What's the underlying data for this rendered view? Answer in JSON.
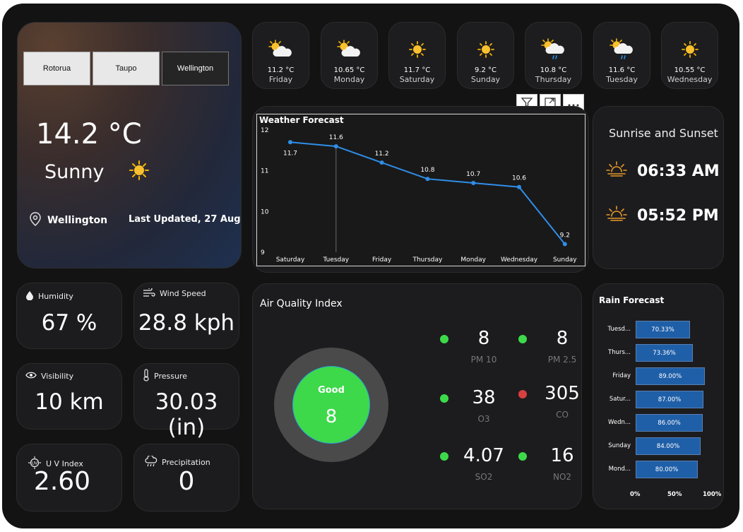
{
  "location_slicer": {
    "options": [
      "Rotorua",
      "Taupo",
      "Wellington"
    ],
    "selected": "Wellington"
  },
  "current": {
    "temperature": "14.2 °C",
    "condition": "Sunny",
    "location": "Wellington",
    "last_updated": "Last Updated, 27 Aug"
  },
  "forecast_tiles": [
    {
      "icon": "sun-cloud-icon",
      "temp": "11.2 °C",
      "day": "Friday"
    },
    {
      "icon": "sun-cloud-icon",
      "temp": "10.65 °C",
      "day": "Monday"
    },
    {
      "icon": "sun-icon",
      "temp": "11.7 °C",
      "day": "Saturday"
    },
    {
      "icon": "sun-icon",
      "temp": "9.2 °C",
      "day": "Sunday"
    },
    {
      "icon": "sun-rain-icon",
      "temp": "10.8 °C",
      "day": "Thursday"
    },
    {
      "icon": "sun-rain-icon",
      "temp": "11.6 °C",
      "day": "Tuesday"
    },
    {
      "icon": "sun-icon",
      "temp": "10.55 °C",
      "day": "Wednesday"
    }
  ],
  "chart_data": {
    "type": "line",
    "title": "Weather Forecast",
    "categories": [
      "Saturday",
      "Tuesday",
      "Friday",
      "Thursday",
      "Monday",
      "Wednesday",
      "Sunday"
    ],
    "values": [
      11.7,
      11.6,
      11.2,
      10.8,
      10.7,
      10.6,
      9.2
    ],
    "data_labels": [
      "11.7",
      "11.6",
      "11.2",
      "10.8",
      "10.7",
      "10.6",
      "9.2"
    ],
    "y_ticks": [
      "12",
      "11",
      "10",
      "9"
    ],
    "ylim": [
      9,
      12
    ],
    "line_color": "#2f8ee8",
    "grid": false
  },
  "sun": {
    "title": "Sunrise and Sunset",
    "sunrise": "06:33 AM",
    "sunset": "05:52 PM"
  },
  "metrics": {
    "humidity": {
      "label": "Humidity",
      "value": "67 %"
    },
    "wind": {
      "label": "Wind Speed",
      "value": "28.8 kph"
    },
    "visibility": {
      "label": "Visibility",
      "value": "10 km"
    },
    "pressure": {
      "label": "Pressure",
      "value": "30.03 (in)"
    },
    "uv": {
      "label": "U V Index",
      "value": "2.60"
    },
    "precipitation": {
      "label": "Precipitation",
      "value": "0"
    }
  },
  "aqi": {
    "title": "Air Quality Index",
    "status": "Good",
    "value": "8",
    "pollutants": [
      {
        "name": "PM 10",
        "value": "8",
        "status_color": "#3dd94a"
      },
      {
        "name": "PM 2.5",
        "value": "8",
        "status_color": "#3dd94a"
      },
      {
        "name": "O3",
        "value": "38",
        "status_color": "#3dd94a"
      },
      {
        "name": "CO",
        "value": "305",
        "status_color": "#d84040"
      },
      {
        "name": "SO2",
        "value": "4.07",
        "status_color": "#3dd94a"
      },
      {
        "name": "NO2",
        "value": "16",
        "status_color": "#3dd94a"
      }
    ]
  },
  "rain": {
    "title": "Rain Forecast",
    "rows": [
      {
        "day": "Tuesd...",
        "value": 70.33,
        "label": "70.33%"
      },
      {
        "day": "Thurs...",
        "value": 73.36,
        "label": "73.36%"
      },
      {
        "day": "Friday",
        "value": 89.0,
        "label": "89.00%"
      },
      {
        "day": "Satur...",
        "value": 87.0,
        "label": "87.00%"
      },
      {
        "day": "Wedn...",
        "value": 86.0,
        "label": "86.00%"
      },
      {
        "day": "Sunday",
        "value": 84.0,
        "label": "84.00%"
      },
      {
        "day": "Mond...",
        "value": 80.0,
        "label": "80.00%"
      }
    ],
    "axis": [
      "0%",
      "50%",
      "100%"
    ],
    "bar_color": "#1f5fa8"
  }
}
